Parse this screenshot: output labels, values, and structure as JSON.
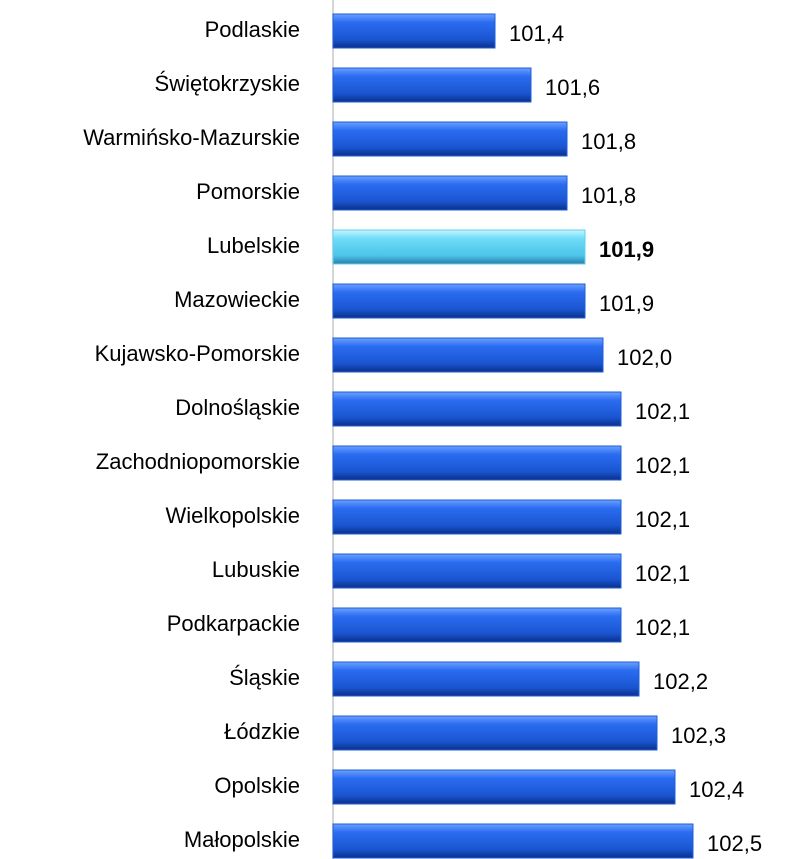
{
  "chart_data": {
    "type": "bar",
    "orientation": "horizontal",
    "categories": [
      "Podlaskie",
      "Świętokrzyskie",
      "Warmińsko-Mazurskie",
      "Pomorskie",
      "Lubelskie",
      "Mazowieckie",
      "Kujawsko-Pomorskie",
      "Dolnośląskie",
      "Zachodniopomorskie",
      "Wielkopolskie",
      "Lubuskie",
      "Podkarpackie",
      "Śląskie",
      "Łódzkie",
      "Opolskie",
      "Małopolskie"
    ],
    "values": [
      101.4,
      101.6,
      101.8,
      101.8,
      101.9,
      101.9,
      102.0,
      102.1,
      102.1,
      102.1,
      102.1,
      102.1,
      102.2,
      102.3,
      102.4,
      102.5
    ],
    "value_labels": [
      "101,4",
      "101,6",
      "101,8",
      "101,8",
      "101,9",
      "101,9",
      "102,0",
      "102,1",
      "102,1",
      "102,1",
      "102,1",
      "102,1",
      "102,2",
      "102,3",
      "102,4",
      "102,5"
    ],
    "color": "#1f5fd6",
    "highlight": 4,
    "highlight_color": "#5fd0f0",
    "xlim": [
      100.5,
      103
    ]
  }
}
